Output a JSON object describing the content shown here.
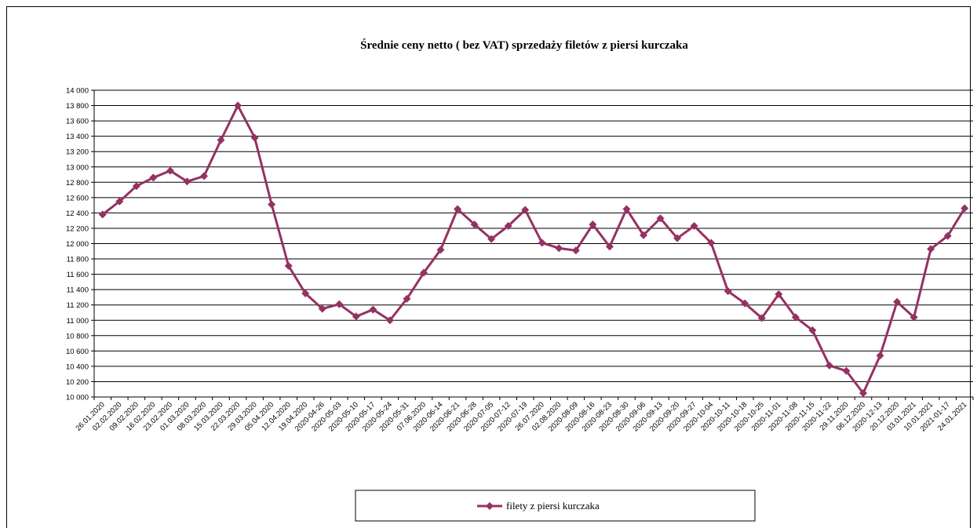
{
  "chart_data": {
    "type": "line",
    "title": "Średnie ceny netto ( bez VAT) sprzedaży filetów z piersi kurczaka",
    "categories": [
      "26.01.2020",
      "02.02.2020",
      "09.02.2020",
      "16.02.2020",
      "23.02.2020",
      "01.03.2020",
      "08.03.2020",
      "15.03.2020",
      "22.03.2020",
      "29.03.2020",
      "05.04.2020",
      "12.04.2020",
      "19.04.2020",
      "2020-04-26",
      "2020-05-03",
      "2020-05-10",
      "2020-05-17",
      "2020-05-24",
      "2020-05-31",
      "07.06.2020",
      "2020-06-14",
      "2020-06-21",
      "2020-06-28",
      "2020-07-05",
      "2020-07-12",
      "2020-07-19",
      "26.07.2020",
      "02.08.2020",
      "2020-08-09",
      "2020-08-16",
      "2020-08-23",
      "2020-08-30",
      "2020-09-06",
      "2020-09-13",
      "2020-09-20",
      "2020-09-27",
      "2020-10-04",
      "2020-10-11",
      "2020-10-18",
      "2020-10-25",
      "2020-11-01",
      "2020-11-08",
      "2020-11-15",
      "2020-11-22",
      "29.11.2020",
      "06.12.2020",
      "2020-12-13",
      "20.12.2020",
      "03.01.2021",
      "10.01.2021",
      "2021-01-17",
      "24.01.2021"
    ],
    "series": [
      {
        "name": "filety z piersi kurczaka",
        "color": "#953163",
        "values": [
          12380,
          12550,
          12750,
          12860,
          12950,
          12810,
          12880,
          13350,
          13800,
          13380,
          12510,
          11710,
          11350,
          11150,
          11210,
          11050,
          11140,
          11000,
          11280,
          11620,
          11920,
          12450,
          12250,
          12060,
          12230,
          12440,
          12010,
          11940,
          11910,
          12250,
          11960,
          12450,
          12110,
          12330,
          12070,
          12230,
          12010,
          11380,
          11220,
          11030,
          11340,
          11040,
          10870,
          10410,
          10340,
          10050,
          10540,
          11240,
          11040,
          11930,
          12100,
          12460
        ]
      }
    ],
    "ylim": [
      10000,
      14000
    ],
    "yticks": [
      {
        "value": 10000,
        "label": "10 000"
      },
      {
        "value": 10200,
        "label": "10 200"
      },
      {
        "value": 10400,
        "label": "10 400"
      },
      {
        "value": 10600,
        "label": "10 600"
      },
      {
        "value": 10800,
        "label": "10 800"
      },
      {
        "value": 11000,
        "label": "11 000"
      },
      {
        "value": 11200,
        "label": "11 200"
      },
      {
        "value": 11400,
        "label": "11 400"
      },
      {
        "value": 11600,
        "label": "11 600"
      },
      {
        "value": 11800,
        "label": "11 800"
      },
      {
        "value": 12000,
        "label": "12 000"
      },
      {
        "value": 12200,
        "label": "12 200"
      },
      {
        "value": 12400,
        "label": "12 400"
      },
      {
        "value": 12600,
        "label": "12 600"
      },
      {
        "value": 12800,
        "label": "12 800"
      },
      {
        "value": 13000,
        "label": "13 000"
      },
      {
        "value": 13200,
        "label": "13 200"
      },
      {
        "value": 13400,
        "label": "13 400"
      },
      {
        "value": 13600,
        "label": "13 600"
      },
      {
        "value": 13800,
        "label": "13 800"
      },
      {
        "value": 14000,
        "label": "14 000"
      }
    ],
    "grid": true,
    "legend": "bottom"
  }
}
